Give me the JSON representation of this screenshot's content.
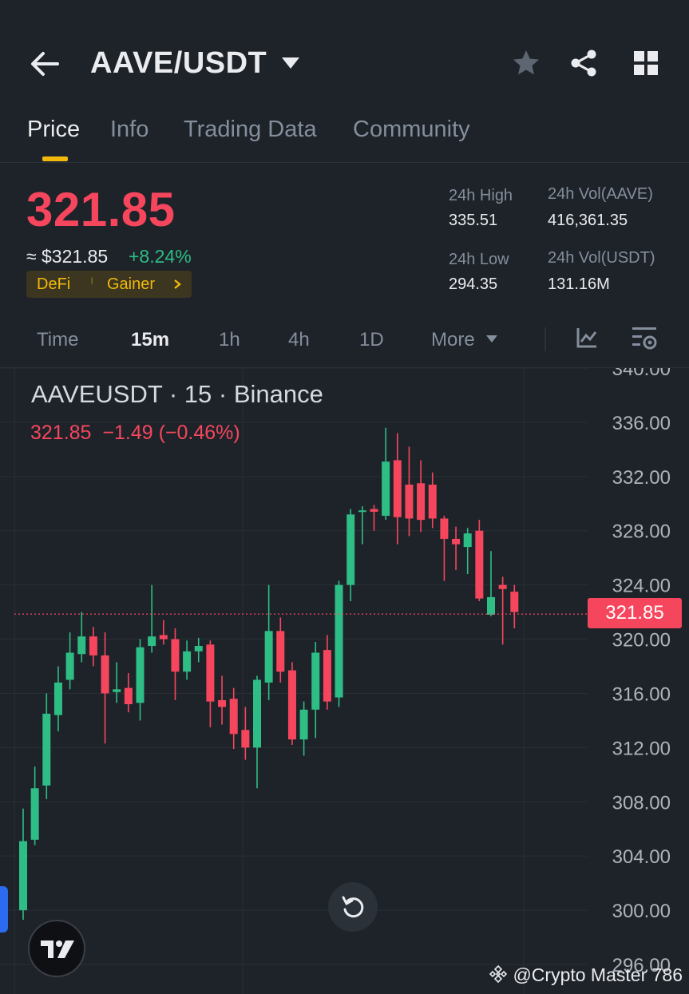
{
  "header": {
    "pair": "AAVE/USDT",
    "icons": [
      "back-arrow-icon",
      "dropdown-caret-icon",
      "star-icon",
      "share-icon",
      "grid-menu-icon"
    ]
  },
  "tabs": [
    {
      "label": "Price",
      "active": true
    },
    {
      "label": "Info"
    },
    {
      "label": "Trading Data"
    },
    {
      "label": "Community"
    }
  ],
  "summary": {
    "price": "321.85",
    "usd_price": "≈ $321.85",
    "change": "+8.24%",
    "tag1": "DeFi",
    "tag2": "Gainer",
    "high_label": "24h High",
    "high": "335.51",
    "low_label": "24h Low",
    "low": "294.35",
    "vol_base_label": "24h Vol(AAVE)",
    "vol_base": "416,361.35",
    "vol_quote_label": "24h Vol(USDT)",
    "vol_quote": "131.16M"
  },
  "timeframes": [
    {
      "label": "Time"
    },
    {
      "label": "15m",
      "active": true
    },
    {
      "label": "1h"
    },
    {
      "label": "4h"
    },
    {
      "label": "1D"
    },
    {
      "label": "More"
    }
  ],
  "chart_header": {
    "title": "AAVEUSDT · 15 · Binance",
    "last": "321.85",
    "change": "−1.49 (−0.46%)"
  },
  "price_tag": "321.85",
  "watermark": "@Crypto Master 786",
  "colors": {
    "up": "#2ebd85",
    "down": "#f6465d",
    "accent": "#f0b90b",
    "bg": "#1e2329"
  },
  "chart_data": {
    "type": "candlestick",
    "ylim": [
      296,
      340
    ],
    "yticks": [
      "340.00",
      "336.00",
      "332.00",
      "328.00",
      "324.00",
      "320.00",
      "316.00",
      "312.00",
      "308.00",
      "304.00",
      "300.00",
      "296.00"
    ],
    "last_price": 321.85,
    "candles": [
      {
        "o": 300.0,
        "h": 307.5,
        "l": 299.3,
        "c": 305.1
      },
      {
        "o": 305.2,
        "h": 310.6,
        "l": 304.8,
        "c": 309.0
      },
      {
        "o": 309.2,
        "h": 316.0,
        "l": 308.2,
        "c": 314.5
      },
      {
        "o": 314.4,
        "h": 318.0,
        "l": 313.2,
        "c": 316.8
      },
      {
        "o": 317.0,
        "h": 320.5,
        "l": 316.3,
        "c": 319.0
      },
      {
        "o": 318.9,
        "h": 322.0,
        "l": 318.3,
        "c": 320.2
      },
      {
        "o": 320.2,
        "h": 320.9,
        "l": 318.0,
        "c": 318.8
      },
      {
        "o": 318.8,
        "h": 320.5,
        "l": 312.3,
        "c": 316.0
      },
      {
        "o": 316.1,
        "h": 318.3,
        "l": 315.3,
        "c": 316.3
      },
      {
        "o": 316.4,
        "h": 317.5,
        "l": 314.6,
        "c": 315.2
      },
      {
        "o": 315.3,
        "h": 320.0,
        "l": 314.0,
        "c": 319.4
      },
      {
        "o": 319.5,
        "h": 324.0,
        "l": 319.0,
        "c": 320.2
      },
      {
        "o": 320.3,
        "h": 321.4,
        "l": 319.6,
        "c": 320.0
      },
      {
        "o": 320.0,
        "h": 320.8,
        "l": 315.5,
        "c": 317.6
      },
      {
        "o": 317.6,
        "h": 319.9,
        "l": 317.0,
        "c": 319.1
      },
      {
        "o": 319.1,
        "h": 320.1,
        "l": 318.3,
        "c": 319.5
      },
      {
        "o": 319.6,
        "h": 319.9,
        "l": 313.5,
        "c": 315.4
      },
      {
        "o": 315.5,
        "h": 317.3,
        "l": 313.7,
        "c": 315.0
      },
      {
        "o": 315.6,
        "h": 316.4,
        "l": 311.9,
        "c": 313.0
      },
      {
        "o": 313.3,
        "h": 315.0,
        "l": 311.1,
        "c": 312.0
      },
      {
        "o": 312.0,
        "h": 317.3,
        "l": 309.0,
        "c": 317.0
      },
      {
        "o": 316.8,
        "h": 324.0,
        "l": 315.5,
        "c": 320.6
      },
      {
        "o": 320.6,
        "h": 321.6,
        "l": 316.8,
        "c": 317.6
      },
      {
        "o": 317.7,
        "h": 318.3,
        "l": 312.2,
        "c": 312.6
      },
      {
        "o": 312.6,
        "h": 315.4,
        "l": 311.4,
        "c": 314.8
      },
      {
        "o": 314.8,
        "h": 319.8,
        "l": 312.7,
        "c": 319.0
      },
      {
        "o": 319.2,
        "h": 320.3,
        "l": 314.8,
        "c": 315.4
      },
      {
        "o": 315.7,
        "h": 324.3,
        "l": 315.0,
        "c": 324.0
      },
      {
        "o": 324.0,
        "h": 329.6,
        "l": 322.8,
        "c": 329.2
      },
      {
        "o": 329.4,
        "h": 329.8,
        "l": 327.0,
        "c": 329.5
      },
      {
        "o": 329.6,
        "h": 329.9,
        "l": 328.0,
        "c": 329.4
      },
      {
        "o": 329.1,
        "h": 335.6,
        "l": 328.8,
        "c": 333.1
      },
      {
        "o": 333.2,
        "h": 335.2,
        "l": 327.0,
        "c": 329.0
      },
      {
        "o": 331.4,
        "h": 334.2,
        "l": 327.6,
        "c": 328.9
      },
      {
        "o": 331.5,
        "h": 333.2,
        "l": 327.9,
        "c": 328.8
      },
      {
        "o": 331.4,
        "h": 332.3,
        "l": 328.2,
        "c": 328.9
      },
      {
        "o": 328.9,
        "h": 329.1,
        "l": 324.3,
        "c": 327.4
      },
      {
        "o": 327.4,
        "h": 328.3,
        "l": 325.1,
        "c": 327.0
      },
      {
        "o": 326.8,
        "h": 328.2,
        "l": 324.8,
        "c": 327.8
      },
      {
        "o": 328.0,
        "h": 328.8,
        "l": 322.8,
        "c": 323.0
      },
      {
        "o": 321.8,
        "h": 326.5,
        "l": 321.7,
        "c": 323.1
      },
      {
        "o": 324.0,
        "h": 324.6,
        "l": 319.6,
        "c": 323.7
      },
      {
        "o": 323.5,
        "h": 324.0,
        "l": 320.8,
        "c": 322.0
      }
    ]
  }
}
